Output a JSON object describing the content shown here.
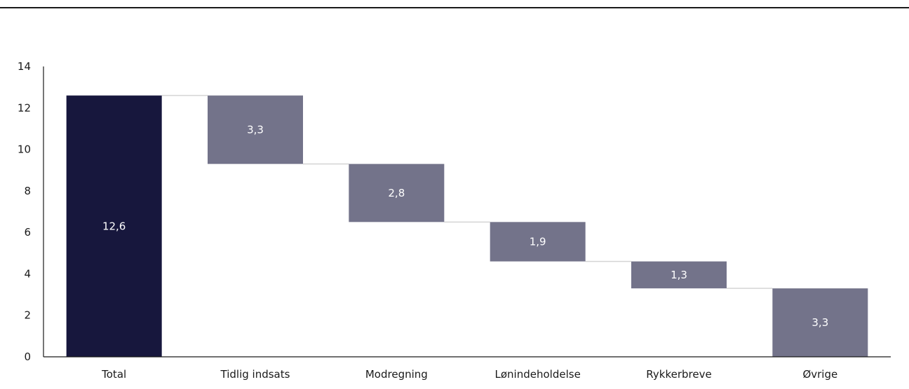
{
  "chart_data": {
    "type": "bar",
    "subtype": "waterfall",
    "categories": [
      "Total",
      "Tidlig indsats",
      "Modregning",
      "Lønindeholdelse",
      "Rykkerbreve",
      "Øvrige"
    ],
    "values": [
      12.6,
      3.3,
      2.8,
      1.9,
      1.3,
      3.3
    ],
    "bar_roles": [
      "total",
      "decrease",
      "decrease",
      "decrease",
      "decrease",
      "remainder"
    ],
    "value_labels": [
      "12,6",
      "3,3",
      "2,8",
      "1,9",
      "1,3",
      "3,3"
    ],
    "yticks": [
      "0",
      "2",
      "4",
      "6",
      "8",
      "10",
      "12",
      "14"
    ],
    "ylim": [
      0,
      14
    ],
    "title": "",
    "xlabel": "",
    "ylabel": "",
    "grid": false,
    "legend": "none",
    "colors": {
      "total": "#17173d",
      "step": "#73738a",
      "connector": "#d4d4d4",
      "axis": "#1a1a1a"
    }
  }
}
